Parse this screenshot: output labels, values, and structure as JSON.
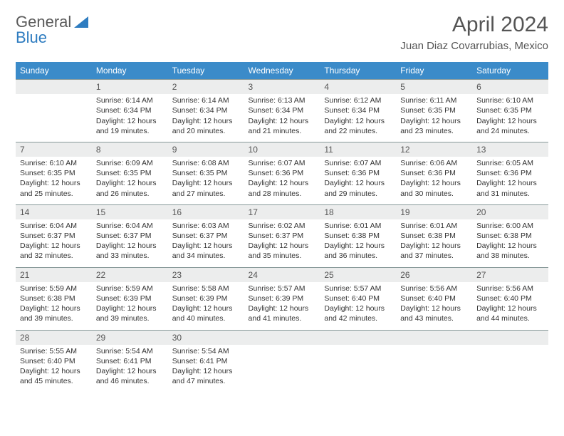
{
  "brand": {
    "part1": "General",
    "part2": "Blue"
  },
  "title": "April 2024",
  "location": "Juan Diaz Covarrubias, Mexico",
  "colors": {
    "header_bg": "#3b8bc9",
    "header_text": "#ffffff",
    "daynum_bg": "#eceded",
    "border": "#8aa1ad",
    "text": "#333333",
    "title_text": "#555555",
    "logo_gray": "#5a5a5a",
    "logo_blue": "#2e7cc0",
    "page_bg": "#ffffff"
  },
  "typography": {
    "month_title_pt": 30,
    "location_pt": 15,
    "header_pt": 12,
    "daynum_pt": 12,
    "cell_pt": 10.5,
    "logo_pt": 22
  },
  "weekdays": [
    "Sunday",
    "Monday",
    "Tuesday",
    "Wednesday",
    "Thursday",
    "Friday",
    "Saturday"
  ],
  "weeks": [
    [
      null,
      {
        "n": "1",
        "sr": "Sunrise: 6:14 AM",
        "ss": "Sunset: 6:34 PM",
        "d1": "Daylight: 12 hours",
        "d2": "and 19 minutes."
      },
      {
        "n": "2",
        "sr": "Sunrise: 6:14 AM",
        "ss": "Sunset: 6:34 PM",
        "d1": "Daylight: 12 hours",
        "d2": "and 20 minutes."
      },
      {
        "n": "3",
        "sr": "Sunrise: 6:13 AM",
        "ss": "Sunset: 6:34 PM",
        "d1": "Daylight: 12 hours",
        "d2": "and 21 minutes."
      },
      {
        "n": "4",
        "sr": "Sunrise: 6:12 AM",
        "ss": "Sunset: 6:34 PM",
        "d1": "Daylight: 12 hours",
        "d2": "and 22 minutes."
      },
      {
        "n": "5",
        "sr": "Sunrise: 6:11 AM",
        "ss": "Sunset: 6:35 PM",
        "d1": "Daylight: 12 hours",
        "d2": "and 23 minutes."
      },
      {
        "n": "6",
        "sr": "Sunrise: 6:10 AM",
        "ss": "Sunset: 6:35 PM",
        "d1": "Daylight: 12 hours",
        "d2": "and 24 minutes."
      }
    ],
    [
      {
        "n": "7",
        "sr": "Sunrise: 6:10 AM",
        "ss": "Sunset: 6:35 PM",
        "d1": "Daylight: 12 hours",
        "d2": "and 25 minutes."
      },
      {
        "n": "8",
        "sr": "Sunrise: 6:09 AM",
        "ss": "Sunset: 6:35 PM",
        "d1": "Daylight: 12 hours",
        "d2": "and 26 minutes."
      },
      {
        "n": "9",
        "sr": "Sunrise: 6:08 AM",
        "ss": "Sunset: 6:35 PM",
        "d1": "Daylight: 12 hours",
        "d2": "and 27 minutes."
      },
      {
        "n": "10",
        "sr": "Sunrise: 6:07 AM",
        "ss": "Sunset: 6:36 PM",
        "d1": "Daylight: 12 hours",
        "d2": "and 28 minutes."
      },
      {
        "n": "11",
        "sr": "Sunrise: 6:07 AM",
        "ss": "Sunset: 6:36 PM",
        "d1": "Daylight: 12 hours",
        "d2": "and 29 minutes."
      },
      {
        "n": "12",
        "sr": "Sunrise: 6:06 AM",
        "ss": "Sunset: 6:36 PM",
        "d1": "Daylight: 12 hours",
        "d2": "and 30 minutes."
      },
      {
        "n": "13",
        "sr": "Sunrise: 6:05 AM",
        "ss": "Sunset: 6:36 PM",
        "d1": "Daylight: 12 hours",
        "d2": "and 31 minutes."
      }
    ],
    [
      {
        "n": "14",
        "sr": "Sunrise: 6:04 AM",
        "ss": "Sunset: 6:37 PM",
        "d1": "Daylight: 12 hours",
        "d2": "and 32 minutes."
      },
      {
        "n": "15",
        "sr": "Sunrise: 6:04 AM",
        "ss": "Sunset: 6:37 PM",
        "d1": "Daylight: 12 hours",
        "d2": "and 33 minutes."
      },
      {
        "n": "16",
        "sr": "Sunrise: 6:03 AM",
        "ss": "Sunset: 6:37 PM",
        "d1": "Daylight: 12 hours",
        "d2": "and 34 minutes."
      },
      {
        "n": "17",
        "sr": "Sunrise: 6:02 AM",
        "ss": "Sunset: 6:37 PM",
        "d1": "Daylight: 12 hours",
        "d2": "and 35 minutes."
      },
      {
        "n": "18",
        "sr": "Sunrise: 6:01 AM",
        "ss": "Sunset: 6:38 PM",
        "d1": "Daylight: 12 hours",
        "d2": "and 36 minutes."
      },
      {
        "n": "19",
        "sr": "Sunrise: 6:01 AM",
        "ss": "Sunset: 6:38 PM",
        "d1": "Daylight: 12 hours",
        "d2": "and 37 minutes."
      },
      {
        "n": "20",
        "sr": "Sunrise: 6:00 AM",
        "ss": "Sunset: 6:38 PM",
        "d1": "Daylight: 12 hours",
        "d2": "and 38 minutes."
      }
    ],
    [
      {
        "n": "21",
        "sr": "Sunrise: 5:59 AM",
        "ss": "Sunset: 6:38 PM",
        "d1": "Daylight: 12 hours",
        "d2": "and 39 minutes."
      },
      {
        "n": "22",
        "sr": "Sunrise: 5:59 AM",
        "ss": "Sunset: 6:39 PM",
        "d1": "Daylight: 12 hours",
        "d2": "and 39 minutes."
      },
      {
        "n": "23",
        "sr": "Sunrise: 5:58 AM",
        "ss": "Sunset: 6:39 PM",
        "d1": "Daylight: 12 hours",
        "d2": "and 40 minutes."
      },
      {
        "n": "24",
        "sr": "Sunrise: 5:57 AM",
        "ss": "Sunset: 6:39 PM",
        "d1": "Daylight: 12 hours",
        "d2": "and 41 minutes."
      },
      {
        "n": "25",
        "sr": "Sunrise: 5:57 AM",
        "ss": "Sunset: 6:40 PM",
        "d1": "Daylight: 12 hours",
        "d2": "and 42 minutes."
      },
      {
        "n": "26",
        "sr": "Sunrise: 5:56 AM",
        "ss": "Sunset: 6:40 PM",
        "d1": "Daylight: 12 hours",
        "d2": "and 43 minutes."
      },
      {
        "n": "27",
        "sr": "Sunrise: 5:56 AM",
        "ss": "Sunset: 6:40 PM",
        "d1": "Daylight: 12 hours",
        "d2": "and 44 minutes."
      }
    ],
    [
      {
        "n": "28",
        "sr": "Sunrise: 5:55 AM",
        "ss": "Sunset: 6:40 PM",
        "d1": "Daylight: 12 hours",
        "d2": "and 45 minutes."
      },
      {
        "n": "29",
        "sr": "Sunrise: 5:54 AM",
        "ss": "Sunset: 6:41 PM",
        "d1": "Daylight: 12 hours",
        "d2": "and 46 minutes."
      },
      {
        "n": "30",
        "sr": "Sunrise: 5:54 AM",
        "ss": "Sunset: 6:41 PM",
        "d1": "Daylight: 12 hours",
        "d2": "and 47 minutes."
      },
      null,
      null,
      null,
      null
    ]
  ]
}
